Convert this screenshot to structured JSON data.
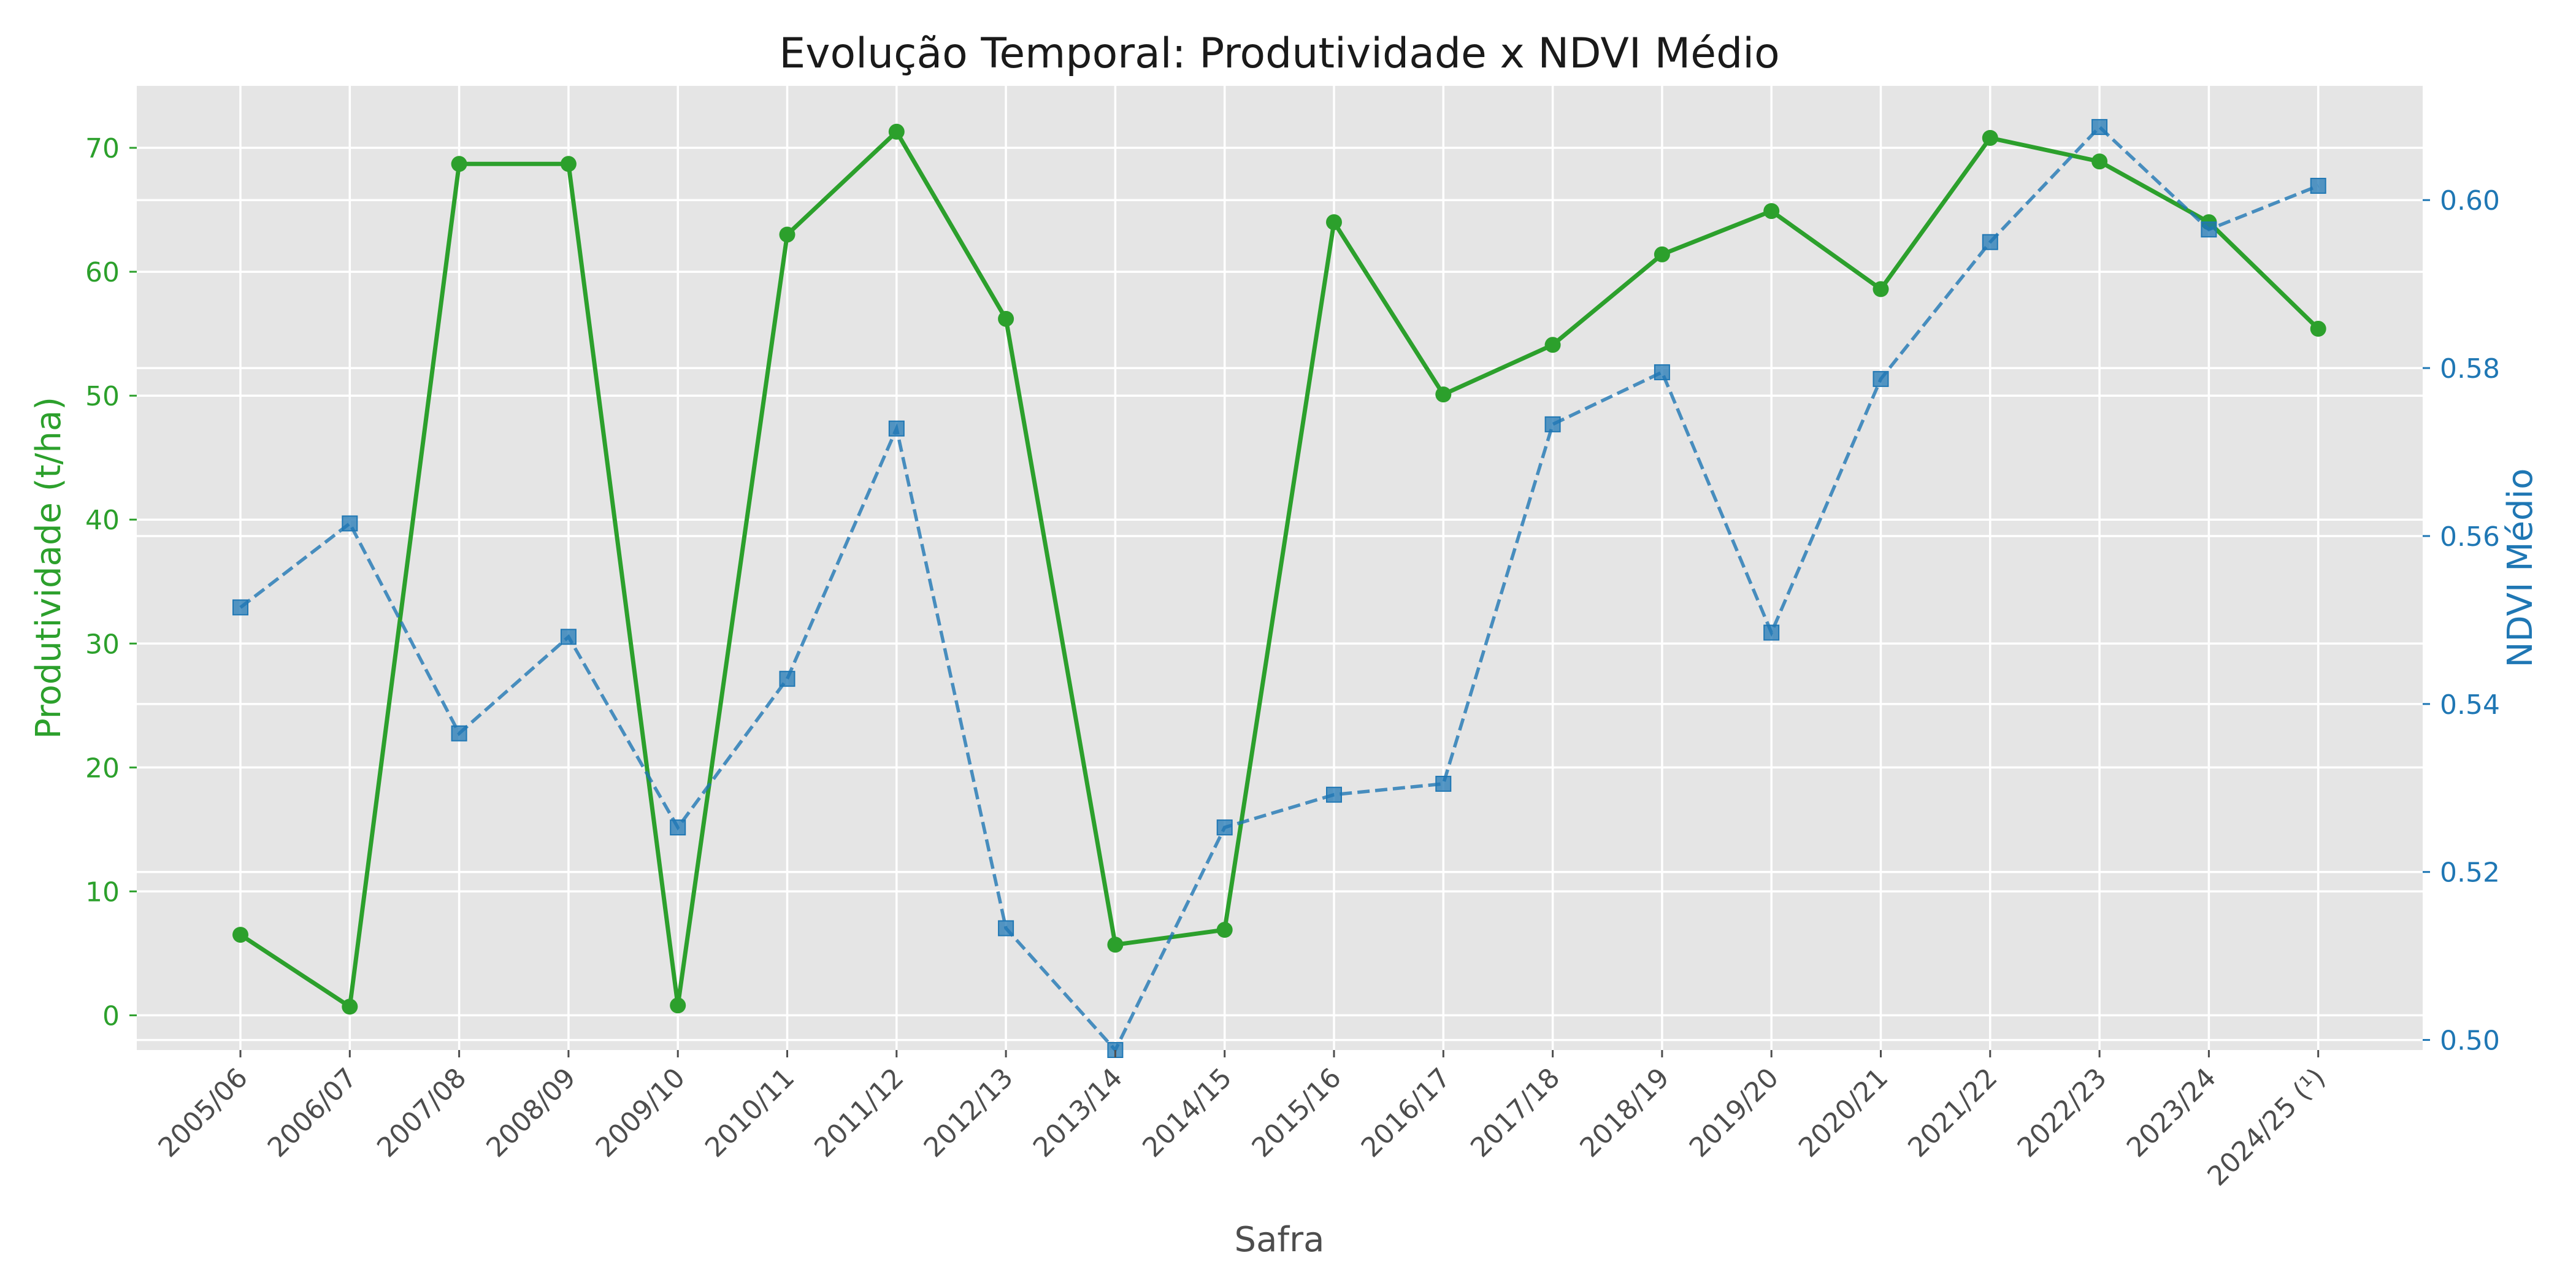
{
  "chart_data": {
    "type": "line",
    "title": "Evolução Temporal: Produtividade x NDVI Médio",
    "xlabel": "Safra",
    "ylabel_left": "Produtividade (t/ha)",
    "ylabel_right": "NDVI Médio",
    "categories": [
      "2005/06",
      "2006/07",
      "2007/08",
      "2008/09",
      "2009/10",
      "2010/11",
      "2011/12",
      "2012/13",
      "2013/14",
      "2014/15",
      "2015/16",
      "2016/17",
      "2017/18",
      "2018/19",
      "2019/20",
      "2020/21",
      "2021/22",
      "2022/23",
      "2023/24",
      "2024/25 (¹)"
    ],
    "ylim_left": [
      -2.8,
      75
    ],
    "yticks_left": [
      0,
      10,
      20,
      30,
      40,
      50,
      60,
      70
    ],
    "ylim_right": [
      0.4988,
      0.6136
    ],
    "yticks_right": [
      0.5,
      0.52,
      0.54,
      0.56,
      0.58,
      0.6
    ],
    "ytick_labels_right": [
      "0.50",
      "0.52",
      "0.54",
      "0.56",
      "0.58",
      "0.60"
    ],
    "grid": true,
    "series": [
      {
        "axis": "left",
        "color": "#2ca02c",
        "marker": "circle",
        "line_style": "solid",
        "values": [
          6.5,
          0.7,
          68.7,
          68.7,
          0.8,
          63.0,
          71.3,
          56.2,
          5.7,
          6.9,
          64.0,
          50.1,
          54.1,
          61.4,
          64.9,
          58.6,
          70.8,
          68.9,
          64.0,
          55.4
        ]
      },
      {
        "axis": "right",
        "color": "#1f77b4",
        "marker": "square",
        "line_style": "dashed",
        "values": [
          0.5515,
          0.5615,
          0.5365,
          0.548,
          0.5253,
          0.543,
          0.5728,
          0.5133,
          0.4988,
          0.5253,
          0.5292,
          0.5305,
          0.5733,
          0.5795,
          0.5485,
          0.5787,
          0.595,
          0.6087,
          0.5965,
          0.6017
        ]
      }
    ]
  },
  "colors": {
    "plot_background": "#e5e5e5",
    "grid": "#ffffff",
    "left_axis": "#2ca02c",
    "right_axis": "#1f77b4",
    "x_axis_text": "#4d4d4d"
  }
}
